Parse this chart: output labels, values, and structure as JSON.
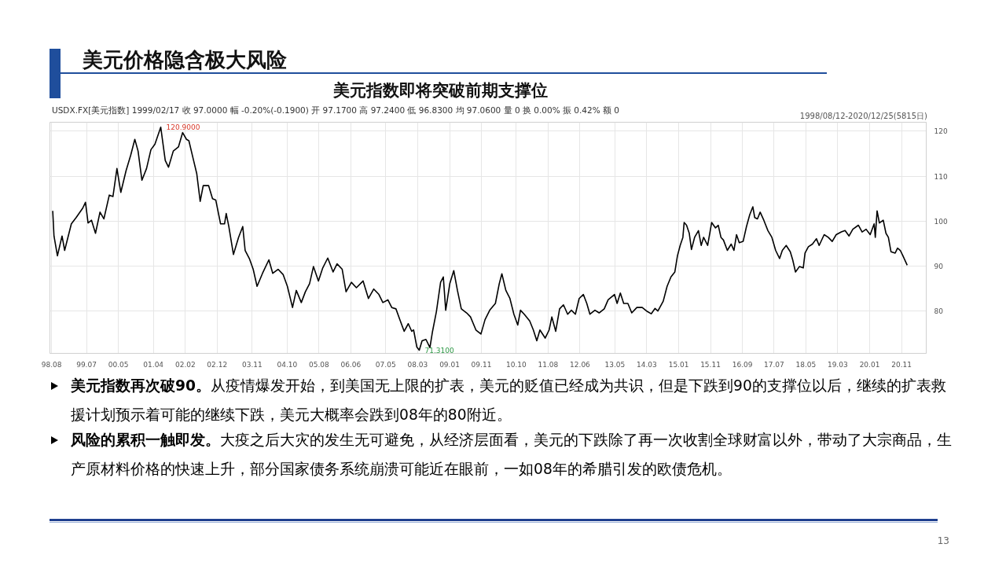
{
  "chart_data": {
    "type": "line",
    "title": "美元价格隐含极大风险",
    "subtitle": "美元指数即将突破前期支撑位",
    "x": [
      "1998-08-12",
      "1998-08-24",
      "1998-09-26",
      "1998-11-09",
      "1998-12-04",
      "1999-02-06",
      "1999-03-24",
      "1999-05-26",
      "1999-06-21",
      "1999-07-16",
      "1999-08-18",
      "1999-09-25",
      "1999-11-07",
      "1999-12-14",
      "2000-02-04",
      "2000-03-10",
      "2000-04-17",
      "2000-05-24",
      "2000-07-13",
      "2000-08-27",
      "2000-10-05",
      "2000-11-05",
      "2000-12-12",
      "2001-01-25",
      "2001-03-08",
      "2001-04-15",
      "2001-06-10",
      "2001-07-23",
      "2001-08-23",
      "2001-10-08",
      "2001-11-26",
      "2002-01-05",
      "2002-02-11",
      "2002-03-06",
      "2002-04-20",
      "2002-05-20",
      "2002-06-22",
      "2002-07-21",
      "2002-09-11",
      "2002-10-18",
      "2002-11-18",
      "2003-01-03",
      "2003-02-10",
      "2003-02-26",
      "2003-03-23",
      "2003-05-06",
      "2003-06-24",
      "2003-08-03",
      "2003-08-26",
      "2003-10-05",
      "2003-11-11",
      "2003-12-18",
      "2004-02-08",
      "2004-04-09",
      "2004-05-16",
      "2004-07-06",
      "2004-08-24",
      "2004-10-03",
      "2004-11-21",
      "2004-12-27",
      "2005-02-13",
      "2005-03-24",
      "2005-05-03",
      "2005-06-09",
      "2005-07-27",
      "2005-09-06",
      "2005-10-24",
      "2005-12-14",
      "2006-01-21",
      "2006-03-11",
      "2006-04-17",
      "2006-06-07",
      "2006-07-25",
      "2006-09-27",
      "2006-11-17",
      "2007-01-07",
      "2007-02-25",
      "2007-04-04",
      "2007-05-22",
      "2007-06-28",
      "2007-08-07",
      "2007-09-13",
      "2007-10-25",
      "2007-12-03",
      "2008-01-05",
      "2008-01-23",
      "2008-02-23",
      "2008-03-17",
      "2008-04-13",
      "2008-05-20",
      "2008-06-27",
      "2008-07-22",
      "2008-08-28",
      "2008-10-07",
      "2008-11-02",
      "2008-11-25",
      "2009-01-03",
      "2009-02-10",
      "2009-03-17",
      "2009-04-23",
      "2009-06-13",
      "2009-07-20",
      "2009-09-10",
      "2009-10-28",
      "2009-12-06",
      "2010-01-20",
      "2010-03-15",
      "2010-04-21",
      "2010-05-16",
      "2010-06-23",
      "2010-08-01",
      "2010-09-08",
      "2010-10-15",
      "2010-11-10",
      "2010-12-16",
      "2011-02-06",
      "2011-03-13",
      "2011-04-15",
      "2011-05-15",
      "2011-07-04",
      "2011-08-11",
      "2011-09-06",
      "2011-10-13",
      "2011-11-19",
      "2011-12-26",
      "2012-02-04",
      "2012-03-11",
      "2012-04-18",
      "2012-05-24",
      "2012-07-03",
      "2012-08-05",
      "2012-09-04",
      "2012-10-22",
      "2012-12-01",
      "2013-01-19",
      "2013-02-25",
      "2013-04-27",
      "2013-05-22",
      "2013-06-22",
      "2013-07-24",
      "2013-09-02",
      "2013-10-09",
      "2013-11-27",
      "2014-01-17",
      "2014-03-07",
      "2014-04-13",
      "2014-05-20",
      "2014-06-16",
      "2014-08-06",
      "2014-09-12",
      "2014-10-19",
      "2014-11-25",
      "2014-12-20",
      "2015-01-15",
      "2015-02-10",
      "2015-02-22",
      "2015-03-17",
      "2015-04-12",
      "2015-05-03",
      "2015-06-02",
      "2015-07-09",
      "2015-08-04",
      "2015-08-27",
      "2015-10-05",
      "2015-11-12",
      "2015-12-19",
      "2016-01-14",
      "2016-02-09",
      "2016-03-04",
      "2016-04-10",
      "2016-05-17",
      "2016-06-12",
      "2016-07-07",
      "2016-08-02",
      "2016-09-08",
      "2016-10-10",
      "2016-11-10",
      "2016-12-10",
      "2016-12-28",
      "2017-01-23",
      "2017-02-18",
      "2017-03-25",
      "2017-05-03",
      "2017-06-10",
      "2017-07-16",
      "2017-08-23",
      "2017-09-18",
      "2017-10-25",
      "2017-12-03",
      "2017-12-26",
      "2018-01-22",
      "2018-02-28",
      "2018-04-06",
      "2018-04-23",
      "2018-05-25",
      "2018-07-03",
      "2018-08-10",
      "2018-09-05",
      "2018-10-23",
      "2018-12-01",
      "2019-01-08",
      "2019-02-15",
      "2019-04-05",
      "2019-05-11",
      "2019-06-18",
      "2019-07-24",
      "2019-09-15",
      "2019-10-21",
      "2019-11-28",
      "2020-01-06",
      "2020-02-13",
      "2020-02-24",
      "2020-03-12",
      "2020-04-03",
      "2020-05-10",
      "2020-06-05",
      "2020-06-28",
      "2020-07-23",
      "2020-09-01",
      "2020-09-24",
      "2020-10-20",
      "2020-11-14",
      "2020-12-25"
    ],
    "series": [
      {
        "color": "#000000",
        "values": [
          102.3,
          96.7,
          92.3,
          96.7,
          93.5,
          99.4,
          100.8,
          102.9,
          104.2,
          99.6,
          100.2,
          97.3,
          102.0,
          100.5,
          105.8,
          105.5,
          111.7,
          106.4,
          111.2,
          114.7,
          118.2,
          115.6,
          109.1,
          111.7,
          115.9,
          117.1,
          120.9,
          113.5,
          112.0,
          115.6,
          116.5,
          119.7,
          118.2,
          117.9,
          113.5,
          110.6,
          104.4,
          107.9,
          107.9,
          105.0,
          104.7,
          99.4,
          99.4,
          101.7,
          98.8,
          92.6,
          96.4,
          98.8,
          93.5,
          91.7,
          89.3,
          85.5,
          88.4,
          91.4,
          88.4,
          89.3,
          88.1,
          85.5,
          80.8,
          84.6,
          81.9,
          84.3,
          86.1,
          89.9,
          86.7,
          89.6,
          91.8,
          88.7,
          90.5,
          89.3,
          84.3,
          86.4,
          85.2,
          86.7,
          82.8,
          84.9,
          83.7,
          81.9,
          82.5,
          80.8,
          80.5,
          78.1,
          75.5,
          77.2,
          75.5,
          75.8,
          72.0,
          71.31,
          73.4,
          73.7,
          71.9,
          75.5,
          79.9,
          86.4,
          87.6,
          80.2,
          86.1,
          89.0,
          84.6,
          80.5,
          79.6,
          78.7,
          75.8,
          74.9,
          78.1,
          80.2,
          81.7,
          86.1,
          88.3,
          84.6,
          82.8,
          79.3,
          76.9,
          80.2,
          79.3,
          77.8,
          75.8,
          73.4,
          75.8,
          74.0,
          75.8,
          78.7,
          75.5,
          80.5,
          81.4,
          79.3,
          80.2,
          79.3,
          82.8,
          83.7,
          81.7,
          79.3,
          80.2,
          79.6,
          80.5,
          82.5,
          83.7,
          81.7,
          84.0,
          81.7,
          81.7,
          79.6,
          80.8,
          80.8,
          79.9,
          79.4,
          80.6,
          80.0,
          82.2,
          85.5,
          87.6,
          88.7,
          92.3,
          94.6,
          96.4,
          99.7,
          99.1,
          97.3,
          93.7,
          96.4,
          97.9,
          94.6,
          96.4,
          94.6,
          99.7,
          98.5,
          99.1,
          96.4,
          95.8,
          93.5,
          94.9,
          93.5,
          97.0,
          95.2,
          95.5,
          98.8,
          101.4,
          103.2,
          100.8,
          100.5,
          102.0,
          100.2,
          97.9,
          96.4,
          93.5,
          91.7,
          93.5,
          94.6,
          93.2,
          91.4,
          88.7,
          89.9,
          89.6,
          92.9,
          94.3,
          94.9,
          96.1,
          94.6,
          97.0,
          96.4,
          95.5,
          97.0,
          97.6,
          97.9,
          96.7,
          98.2,
          99.1,
          97.6,
          98.2,
          97.0,
          99.4,
          96.4,
          102.3,
          99.6,
          100.2,
          97.3,
          96.4,
          93.2,
          92.9,
          94.0,
          93.5,
          92.3,
          90.2
        ]
      }
    ],
    "xlim": [
      "1998-07-16",
      "2021-06-25"
    ],
    "ylim": [
      70.6,
      122.0
    ],
    "xticks": [
      {
        "value": "1998-08",
        "label": "98.08"
      },
      {
        "value": "1999-07",
        "label": "99.07"
      },
      {
        "value": "2000-05",
        "label": "00.05"
      },
      {
        "value": "2001-04",
        "label": "01.04"
      },
      {
        "value": "2002-02",
        "label": "02.02"
      },
      {
        "value": "2002-12",
        "label": "02.12"
      },
      {
        "value": "2003-11",
        "label": "03.11"
      },
      {
        "value": "2004-10",
        "label": "04.10"
      },
      {
        "value": "2005-08",
        "label": "05.08"
      },
      {
        "value": "2006-06",
        "label": "06.06"
      },
      {
        "value": "2007-05",
        "label": "07.05"
      },
      {
        "value": "2008-03",
        "label": "08.03"
      },
      {
        "value": "2009-01",
        "label": "09.01"
      },
      {
        "value": "2009-11",
        "label": "09.11"
      },
      {
        "value": "2010-10",
        "label": "10.10"
      },
      {
        "value": "2011-08",
        "label": "11.08"
      },
      {
        "value": "2012-06",
        "label": "12.06"
      },
      {
        "value": "2013-05",
        "label": "13.05"
      },
      {
        "value": "2014-03",
        "label": "14.03"
      },
      {
        "value": "2015-01",
        "label": "15.01"
      },
      {
        "value": "2015-11",
        "label": "15.11"
      },
      {
        "value": "2016-09",
        "label": "16.09"
      },
      {
        "value": "2017-07",
        "label": "17.07"
      },
      {
        "value": "2018-05",
        "label": "18.05"
      },
      {
        "value": "2019-03",
        "label": "19.03"
      },
      {
        "value": "2020-01",
        "label": "20.01"
      },
      {
        "value": "2020-11",
        "label": "20.11"
      }
    ],
    "yticks": [
      80,
      90,
      100,
      110,
      120
    ],
    "grid": true,
    "annotations": [
      "USDX.FX[美元指数] 1999/02/17 收 97.0000 幅 -0.20%(-0.1900) 开 97.1700 高 97.2400 低 96.8300 均 97.0600 量 0 换 0.00% 振 0.42% 额 0",
      "1998/08/12-2020/12/25(5815日)",
      {
        "text": "120.9000",
        "x": "2001-06-10",
        "y": 120.9
      },
      {
        "text": "71.3100",
        "x": "2008-03-17",
        "y": 71.31
      },
      "美元指数再次破90。从疫情爆发开始，到美国无上限的扩表，美元的贬值已经成为共识，但是下跌到90的支撑位以后，继续的扩表救援计划预示着可能的继续下跌，美元大概率会跌到08年的80附近。",
      "风险的累积一触即发。大疫之后大灾的发生无可避免，从经济层面看，美元的下跌除了再一次收割全球财富以外，带动了大宗商品，生产原材料价格的快速上升，部分国家债务系统崩溃可能近在眼前，一如08年的希腊引发的欧债危机。",
      "13"
    ]
  }
}
